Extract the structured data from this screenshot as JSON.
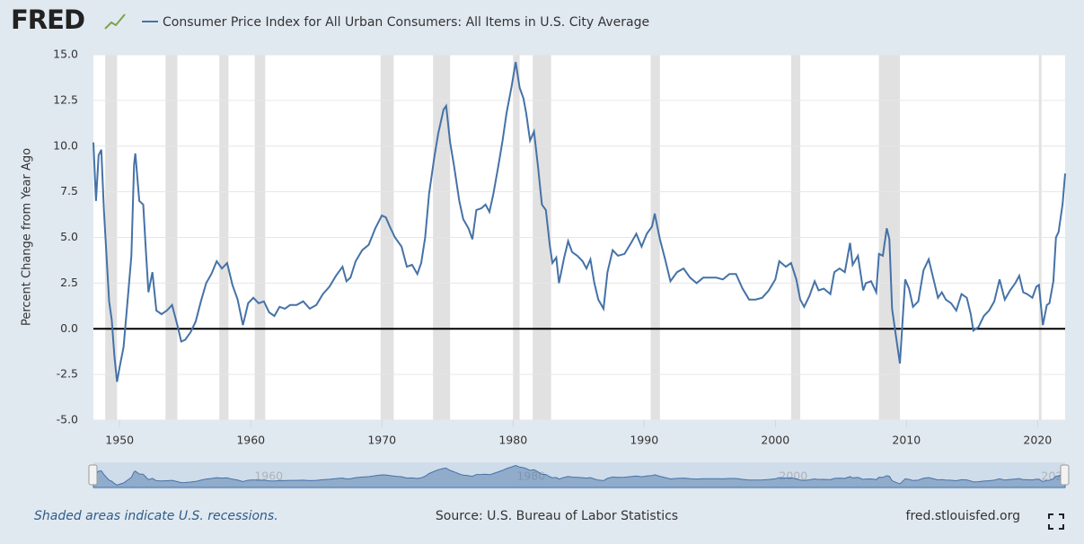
{
  "chart_data": {
    "type": "line",
    "logo": "FRED",
    "y_label": "Percent Change from Year Ago",
    "note": "Shaded areas indicate U.S. recessions.",
    "source": "Source: U.S. Bureau of Labor Statistics",
    "site": "fred.stlouisfed.org",
    "xlim": [
      1948.0,
      2022.1
    ],
    "xticks": [
      1950,
      1960,
      1970,
      1980,
      1990,
      2000,
      2010,
      2020
    ],
    "ylim": [
      -5,
      15
    ],
    "yticks": [
      {
        "value": -5,
        "label": "-5.0"
      },
      {
        "value": -2.5,
        "label": "-2.5"
      },
      {
        "value": 0,
        "label": "0.0"
      },
      {
        "value": 2.5,
        "label": "2.5"
      },
      {
        "value": 5,
        "label": "5.0"
      },
      {
        "value": 7.5,
        "label": "7.5"
      },
      {
        "value": 10,
        "label": "10.0"
      },
      {
        "value": 12.5,
        "label": "12.5"
      },
      {
        "value": 15,
        "label": "15.0"
      }
    ],
    "grid": true,
    "hline": 0,
    "navigator_ticks": [
      1960,
      1980,
      2000,
      2020
    ],
    "recessions": [
      [
        1948.9,
        1949.8
      ],
      [
        1953.5,
        1954.4
      ],
      [
        1957.6,
        1958.3
      ],
      [
        1960.3,
        1961.1
      ],
      [
        1969.9,
        1970.9
      ],
      [
        1973.9,
        1975.2
      ],
      [
        1980.0,
        1980.5
      ],
      [
        1981.5,
        1982.9
      ],
      [
        1990.5,
        1991.2
      ],
      [
        2001.2,
        2001.9
      ],
      [
        2007.9,
        2009.5
      ],
      [
        2020.1,
        2020.3
      ]
    ],
    "x": [
      1948.0,
      1948.2,
      1948.4,
      1948.6,
      1948.8,
      1949.0,
      1949.2,
      1949.4,
      1949.6,
      1949.8,
      1950.0,
      1950.3,
      1950.6,
      1950.9,
      1951.1,
      1951.2,
      1951.5,
      1951.8,
      1952.0,
      1952.2,
      1952.5,
      1952.8,
      1953.2,
      1953.6,
      1954.0,
      1954.4,
      1954.7,
      1955.0,
      1955.4,
      1955.8,
      1956.2,
      1956.6,
      1957.0,
      1957.4,
      1957.8,
      1958.2,
      1958.6,
      1959.0,
      1959.4,
      1959.8,
      1960.2,
      1960.6,
      1961.0,
      1961.4,
      1961.8,
      1962.2,
      1962.6,
      1963.0,
      1963.5,
      1964.0,
      1964.5,
      1965.0,
      1965.5,
      1966.0,
      1966.5,
      1967.0,
      1967.3,
      1967.6,
      1968.0,
      1968.5,
      1969.0,
      1969.5,
      1970.0,
      1970.3,
      1970.6,
      1971.0,
      1971.5,
      1971.9,
      1972.3,
      1972.7,
      1973.0,
      1973.3,
      1973.6,
      1974.0,
      1974.3,
      1974.7,
      1974.9,
      1975.2,
      1975.5,
      1975.9,
      1976.2,
      1976.6,
      1976.9,
      1977.2,
      1977.6,
      1977.9,
      1978.2,
      1978.5,
      1978.9,
      1979.2,
      1979.5,
      1979.9,
      1980.2,
      1980.5,
      1980.8,
      1981.0,
      1981.3,
      1981.6,
      1981.9,
      1982.2,
      1982.5,
      1982.8,
      1983.0,
      1983.3,
      1983.5,
      1983.9,
      1984.2,
      1984.5,
      1984.9,
      1985.3,
      1985.6,
      1985.9,
      1986.2,
      1986.5,
      1986.9,
      1987.2,
      1987.6,
      1988.0,
      1988.5,
      1989.0,
      1989.4,
      1989.8,
      1990.2,
      1990.6,
      1990.8,
      1991.2,
      1991.6,
      1992.0,
      1992.5,
      1993.0,
      1993.5,
      1994.0,
      1994.5,
      1995.0,
      1995.5,
      1996.0,
      1996.5,
      1997.0,
      1997.5,
      1998.0,
      1998.5,
      1999.0,
      1999.5,
      2000.0,
      2000.3,
      2000.8,
      2001.2,
      2001.6,
      2001.9,
      2002.2,
      2002.6,
      2003.0,
      2003.3,
      2003.7,
      2004.2,
      2004.5,
      2004.9,
      2005.3,
      2005.7,
      2005.9,
      2006.3,
      2006.7,
      2006.9,
      2007.3,
      2007.7,
      2007.9,
      2008.2,
      2008.5,
      2008.7,
      2008.9,
      2009.2,
      2009.5,
      2009.9,
      2010.2,
      2010.5,
      2010.9,
      2011.3,
      2011.7,
      2012.0,
      2012.4,
      2012.7,
      2013.0,
      2013.4,
      2013.8,
      2014.2,
      2014.6,
      2014.9,
      2015.1,
      2015.5,
      2015.9,
      2016.3,
      2016.7,
      2017.1,
      2017.5,
      2017.9,
      2018.3,
      2018.6,
      2018.9,
      2019.2,
      2019.6,
      2019.9,
      2020.1,
      2020.4,
      2020.7,
      2020.9,
      2021.2,
      2021.4,
      2021.6,
      2021.9,
      2022.1
    ],
    "series": [
      {
        "name": "Consumer Price Index for All Urban Consumers: All Items in U.S. City Average",
        "color": "#4572a7",
        "values": [
          10.2,
          7.0,
          9.5,
          9.8,
          6.5,
          4.0,
          1.5,
          0.5,
          -1.5,
          -2.9,
          -2.1,
          -1.0,
          1.5,
          4.0,
          9.0,
          9.6,
          7.0,
          6.8,
          4.3,
          2.0,
          3.1,
          1.0,
          0.8,
          1.0,
          1.3,
          0.2,
          -0.7,
          -0.6,
          -0.2,
          0.4,
          1.5,
          2.5,
          3.0,
          3.7,
          3.3,
          3.6,
          2.4,
          1.6,
          0.2,
          1.4,
          1.7,
          1.4,
          1.5,
          0.9,
          0.7,
          1.2,
          1.1,
          1.3,
          1.3,
          1.5,
          1.1,
          1.3,
          1.9,
          2.3,
          2.9,
          3.4,
          2.6,
          2.8,
          3.7,
          4.3,
          4.6,
          5.5,
          6.2,
          6.1,
          5.6,
          5.0,
          4.5,
          3.4,
          3.5,
          3.0,
          3.6,
          5.0,
          7.4,
          9.4,
          10.7,
          12.0,
          12.2,
          10.2,
          8.9,
          7.0,
          6.0,
          5.5,
          4.9,
          6.5,
          6.6,
          6.8,
          6.4,
          7.4,
          9.0,
          10.3,
          11.8,
          13.3,
          14.6,
          13.2,
          12.6,
          11.8,
          10.3,
          10.8,
          8.9,
          6.8,
          6.5,
          4.6,
          3.6,
          3.9,
          2.5,
          3.9,
          4.8,
          4.2,
          4.0,
          3.7,
          3.3,
          3.8,
          2.5,
          1.6,
          1.1,
          3.1,
          4.3,
          4.0,
          4.1,
          4.7,
          5.2,
          4.5,
          5.2,
          5.6,
          6.3,
          4.9,
          3.8,
          2.6,
          3.1,
          3.3,
          2.8,
          2.5,
          2.8,
          2.8,
          2.8,
          2.7,
          3.0,
          3.0,
          2.2,
          1.6,
          1.6,
          1.7,
          2.1,
          2.7,
          3.7,
          3.4,
          3.6,
          2.7,
          1.6,
          1.2,
          1.8,
          2.6,
          2.1,
          2.2,
          1.9,
          3.1,
          3.3,
          3.1,
          4.7,
          3.5,
          4.0,
          2.1,
          2.5,
          2.6,
          2.0,
          4.1,
          4.0,
          5.5,
          4.9,
          1.1,
          -0.4,
          -1.9,
          2.7,
          2.2,
          1.2,
          1.5,
          3.2,
          3.8,
          2.9,
          1.7,
          2.0,
          1.6,
          1.4,
          1.0,
          1.9,
          1.7,
          0.8,
          -0.1,
          0.1,
          0.7,
          1.0,
          1.5,
          2.7,
          1.6,
          2.1,
          2.5,
          2.9,
          2.0,
          1.9,
          1.7,
          2.3,
          2.4,
          0.2,
          1.3,
          1.4,
          2.6,
          5.0,
          5.3,
          6.8,
          8.5
        ]
      }
    ]
  }
}
